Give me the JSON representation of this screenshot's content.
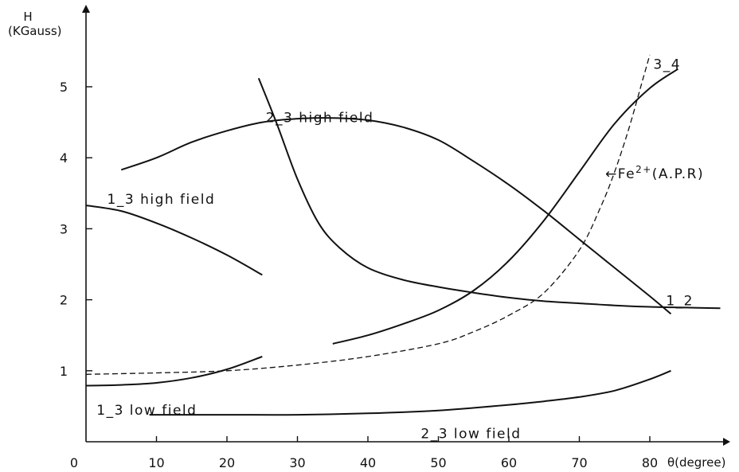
{
  "chart_data": {
    "type": "line",
    "xlabel": "θ(degree)",
    "ylabel_top": "H",
    "ylabel_unit": "(KGauss)",
    "xlim": [
      0,
      90
    ],
    "ylim": [
      0,
      5.5
    ],
    "x_ticks": [
      "0",
      "10",
      "20",
      "30",
      "40",
      "50",
      "60",
      "70",
      "80"
    ],
    "y_ticks": [
      "1",
      "2",
      "3",
      "4",
      "5"
    ],
    "grid": false,
    "series": [
      {
        "name": "1_3 high field",
        "style": "solid",
        "x": [
          0,
          5,
          10,
          15,
          20,
          25
        ],
        "y": [
          3.33,
          3.25,
          3.08,
          2.87,
          2.63,
          2.35
        ]
      },
      {
        "name": "2_3 high field",
        "style": "solid",
        "x": [
          5,
          10,
          15,
          20,
          25,
          30,
          35,
          40,
          45,
          50,
          55,
          60,
          65,
          70,
          75,
          80,
          83
        ],
        "y": [
          3.83,
          4.0,
          4.22,
          4.38,
          4.5,
          4.55,
          4.56,
          4.53,
          4.43,
          4.25,
          3.95,
          3.62,
          3.25,
          2.85,
          2.45,
          2.05,
          1.8
        ]
      },
      {
        "name": "1_2",
        "style": "solid",
        "x": [
          24.5,
          27,
          30,
          33,
          36,
          40,
          45,
          50,
          55,
          60,
          65,
          70,
          75,
          80,
          85,
          90
        ],
        "y": [
          5.12,
          4.5,
          3.7,
          3.08,
          2.73,
          2.45,
          2.28,
          2.18,
          2.1,
          2.03,
          1.98,
          1.95,
          1.92,
          1.9,
          1.89,
          1.88
        ]
      },
      {
        "name": "3_4",
        "style": "solid",
        "x": [
          35,
          40,
          45,
          50,
          55,
          60,
          65,
          70,
          75,
          80,
          84
        ],
        "y": [
          1.38,
          1.5,
          1.66,
          1.85,
          2.13,
          2.55,
          3.12,
          3.8,
          4.48,
          4.98,
          5.25
        ]
      },
      {
        "name": "Fe2+ (A.P.R)",
        "style": "dashed",
        "x": [
          0,
          10,
          20,
          30,
          40,
          50,
          55,
          60,
          65,
          70,
          73,
          75,
          77,
          79,
          80
        ],
        "y": [
          0.95,
          0.97,
          1.0,
          1.08,
          1.2,
          1.38,
          1.55,
          1.78,
          2.1,
          2.7,
          3.3,
          3.8,
          4.4,
          5.1,
          5.45
        ]
      },
      {
        "name": "1_3 low field",
        "style": "solid",
        "x": [
          0,
          5,
          10,
          15,
          20,
          25
        ],
        "y": [
          0.79,
          0.8,
          0.83,
          0.9,
          1.02,
          1.2
        ]
      },
      {
        "name": "2_3 low field",
        "style": "solid",
        "x": [
          9,
          20,
          30,
          40,
          50,
          60,
          65,
          70,
          75,
          80,
          83
        ],
        "y": [
          0.38,
          0.38,
          0.38,
          0.4,
          0.44,
          0.52,
          0.57,
          0.63,
          0.72,
          0.88,
          1.0
        ]
      }
    ],
    "annotations": [
      {
        "text": "2_3  high  field",
        "x": 25.5,
        "y": 4.5
      },
      {
        "text": "1_3  high  field",
        "x": 3,
        "y": 3.35
      },
      {
        "text": "1_2",
        "x": 82.3,
        "y": 1.92
      },
      {
        "text": "3_4",
        "x": 80.5,
        "y": 5.25
      },
      {
        "text": "1_3  low  field",
        "x": 1.5,
        "y": 0.38
      },
      {
        "text": "2_3  low  field",
        "x": 47.5,
        "y": 0.05
      }
    ],
    "fe_label": {
      "prefix": "←Fe",
      "superscript": "2+",
      "suffix": "(A.P.R)"
    }
  }
}
